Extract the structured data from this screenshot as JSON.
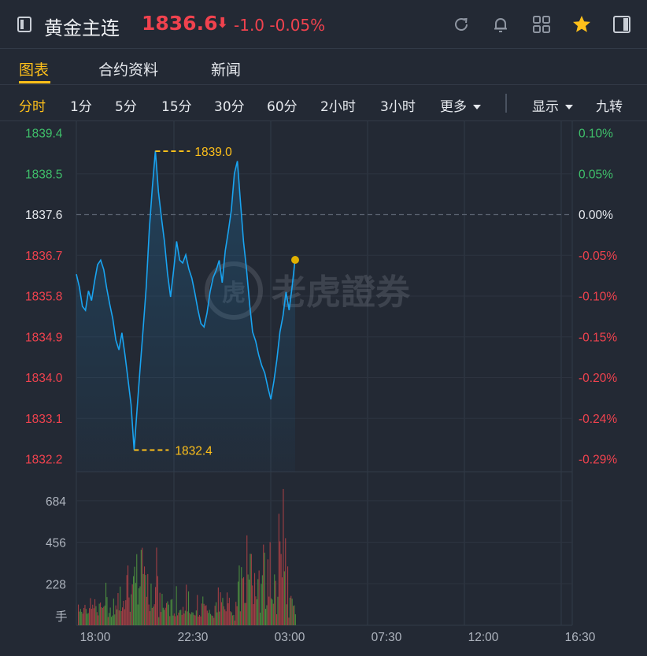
{
  "header": {
    "title": "黄金主连",
    "price": "1836.6",
    "price_arrow": "⬇",
    "change": "-1.0",
    "change_pct": "-0.05%"
  },
  "tabs": [
    {
      "label": "图表",
      "active": true
    },
    {
      "label": "合约资料",
      "active": false
    },
    {
      "label": "新闻",
      "active": false
    }
  ],
  "periods": [
    {
      "label": "分时",
      "active": true
    },
    {
      "label": "1分"
    },
    {
      "label": "5分"
    },
    {
      "label": "15分"
    },
    {
      "label": "30分"
    },
    {
      "label": "60分"
    },
    {
      "label": "2小时"
    },
    {
      "label": "3小时"
    },
    {
      "label": "更多"
    }
  ],
  "controls": {
    "display": "显示",
    "rotate": "九转"
  },
  "chart_data": {
    "type": "line",
    "price_ticks": [
      "1839.4",
      "1838.5",
      "1837.6",
      "1836.7",
      "1835.8",
      "1834.9",
      "1834.0",
      "1833.1",
      "1832.2"
    ],
    "pct_ticks": [
      "0.10%",
      "0.05%",
      "0.00%",
      "-0.05%",
      "-0.10%",
      "-0.15%",
      "-0.20%",
      "-0.24%",
      "-0.29%"
    ],
    "ylim": [
      1832.2,
      1839.4
    ],
    "prev_close": 1837.6,
    "x_ticks": [
      "18:00",
      "22:30",
      "03:00",
      "07:30",
      "12:00",
      "16:30"
    ],
    "high_label": "1839.0",
    "low_label": "1832.4",
    "last": 1836.6,
    "series": [
      {
        "values": [
          1836.3,
          1836.0,
          1835.6,
          1835.5,
          1835.9,
          1835.7,
          1836.1,
          1836.5,
          1836.6,
          1836.4,
          1836.0,
          1835.6,
          1835.3,
          1834.8,
          1834.6,
          1835.0,
          1834.5,
          1834.0,
          1833.4,
          1832.4,
          1833.3,
          1834.2,
          1835.1,
          1836.0,
          1837.3,
          1838.2,
          1839.0,
          1838.1,
          1837.5,
          1837.0,
          1836.3,
          1835.8,
          1836.4,
          1837.0,
          1836.6,
          1836.5,
          1836.7,
          1836.4,
          1836.2,
          1835.9,
          1835.5,
          1835.2,
          1835.1,
          1835.4,
          1835.9,
          1836.2,
          1836.4,
          1836.6,
          1836.1,
          1836.8,
          1837.2,
          1837.7,
          1838.5,
          1838.8,
          1837.9,
          1837.0,
          1836.4,
          1835.6,
          1835.0,
          1834.8,
          1834.5,
          1834.3,
          1834.1,
          1833.8,
          1833.5,
          1833.9,
          1834.4,
          1835.0,
          1835.4,
          1835.9,
          1835.5,
          1836.0,
          1836.6
        ]
      }
    ],
    "volume_ticks": [
      "684",
      "456",
      "228"
    ],
    "volume_unit": "手",
    "volume_max": 800
  },
  "watermark": "老虎證券",
  "colors": {
    "up": "#f0424e",
    "down": "#3fbf6a",
    "line": "#19a4f1",
    "accent": "#ffc01a"
  }
}
